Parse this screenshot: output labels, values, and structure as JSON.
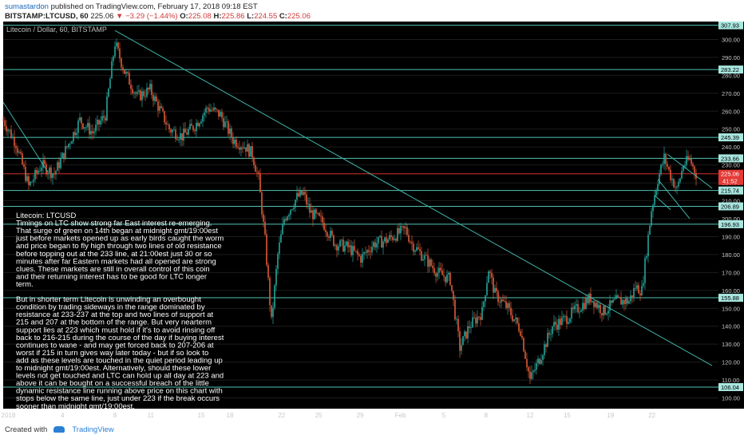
{
  "header": {
    "user": "sumastardon",
    "published": "published on TradingView.com, February 17, 2018 09:18 EST",
    "symbol": "BITSTAMP:LTCUSD, 60",
    "last": "225.06",
    "change": "−3.29 (−1.44%)",
    "open_label": "O:",
    "open": "225.08",
    "high_label": "H:",
    "high": "225.86",
    "low_label": "L:",
    "low": "224.55",
    "close_label": "C:",
    "close": "225.06"
  },
  "footer": {
    "created_with": "Created with",
    "brand": "TradingView"
  },
  "colors": {
    "background": "#000000",
    "level_line": "#4fc3b4",
    "price_line": "#d32f2f",
    "up": "#26a69a",
    "down": "#e05a3a",
    "trend": "#3fb5a8"
  },
  "chart_data": {
    "type": "candlestick",
    "title": "Litecoin / Dollar, 60, BITSTAMP",
    "y_range": [
      94,
      310
    ],
    "y_ticks": [
      100,
      110,
      120,
      130,
      140,
      150,
      160,
      170,
      180,
      190,
      200,
      210,
      220,
      230,
      240,
      250,
      260,
      270,
      280,
      290,
      300
    ],
    "x_ticks": [
      "2018",
      "4",
      "8",
      "11",
      "15",
      "18",
      "22",
      "25",
      "29",
      "Feb",
      "5",
      "8",
      "12",
      "15",
      "19",
      "22"
    ],
    "horizontal_levels": [
      307.93,
      283.22,
      245.39,
      233.66,
      215.74,
      206.89,
      196.93,
      155.88,
      106.04
    ],
    "current_price": 225.06,
    "current_time": "41:52",
    "series_path": [
      [
        0,
        255
      ],
      [
        2,
        242
      ],
      [
        4,
        218
      ],
      [
        6,
        230
      ],
      [
        8,
        225
      ],
      [
        10,
        240
      ],
      [
        12,
        255
      ],
      [
        14,
        248
      ],
      [
        16,
        258
      ],
      [
        17.5,
        298
      ],
      [
        19,
        282
      ],
      [
        21,
        268
      ],
      [
        23,
        272
      ],
      [
        26,
        250
      ],
      [
        28,
        246
      ],
      [
        30,
        252
      ],
      [
        32,
        262
      ],
      [
        34,
        258
      ],
      [
        36,
        244
      ],
      [
        38,
        240
      ],
      [
        39,
        236
      ],
      [
        40,
        222
      ],
      [
        41,
        188
      ],
      [
        42,
        142
      ],
      [
        43,
        180
      ],
      [
        44,
        200
      ],
      [
        46,
        212
      ],
      [
        47,
        214
      ],
      [
        48,
        204
      ],
      [
        50,
        198
      ],
      [
        52,
        186
      ],
      [
        54,
        184
      ],
      [
        56,
        178
      ],
      [
        58,
        186
      ],
      [
        60,
        188
      ],
      [
        62,
        192
      ],
      [
        63,
        194
      ],
      [
        64,
        186
      ],
      [
        66,
        178
      ],
      [
        68,
        170
      ],
      [
        70,
        166
      ],
      [
        71.5,
        128
      ],
      [
        73,
        140
      ],
      [
        75,
        148
      ],
      [
        76,
        172
      ],
      [
        77,
        158
      ],
      [
        79,
        150
      ],
      [
        81,
        138
      ],
      [
        82.5,
        110
      ],
      [
        84,
        122
      ],
      [
        86,
        140
      ],
      [
        88,
        144
      ],
      [
        90,
        150
      ],
      [
        92,
        156
      ],
      [
        94,
        148
      ],
      [
        96,
        154
      ],
      [
        98,
        154
      ],
      [
        99,
        162
      ],
      [
        100,
        160
      ],
      [
        101.5,
        205
      ],
      [
        102.5,
        222
      ],
      [
        103.5,
        234
      ],
      [
        104.5,
        224
      ],
      [
        105.5,
        216
      ],
      [
        106.5,
        230
      ],
      [
        107.5,
        233
      ],
      [
        108.5,
        225
      ]
    ],
    "trendlines": [
      {
        "from": [
          17.5,
          305
        ],
        "to": [
          111,
          118
        ]
      },
      {
        "from": [
          0,
          265
        ],
        "to": [
          7,
          226
        ]
      },
      {
        "from": [
          104,
          236
        ],
        "to": [
          111,
          217
        ]
      },
      {
        "from": [
          102.5,
          222
        ],
        "to": [
          107.5,
          200
        ]
      },
      {
        "from": [
          102,
          213
        ],
        "to": [
          104.5,
          205
        ]
      }
    ],
    "annotation": [
      "Litecoin: LTCUSD",
      "Timings on LTC show strong far East interest re-emerging.",
      "That surge of green on 14th began at midnight gmt/19:00est",
      "just before markets opened up as early birds caught the worm",
      "and price began to fly high through two lines of old resistance",
      "before topping out at the 233 line, at 21:00est just 30 or so",
      "minutes after far Eastern markets had all opened are strong",
      "clues. These markets are still in overall control of this coin",
      "and their returning interest has to be good for LTC longer",
      "term.",
      "",
      "But in shorter term Litecoin is unwinding an overbought",
      "condition by trading sideways in the range dominated by",
      "resistance at 233-237 at the top and two lines of support at",
      "215 and 207 at the bottom of the range. But very nearterm",
      "support lies at 223 which must hold if it's to avoid rinsing off",
      "back to 216-215 during the course of the day if buying interest",
      "continues to wane - and may get forced back to 207-206 at",
      "worst if 215 in turn gives way later today - but if so look to",
      "add as these levels are touched in the quiet period leading up",
      "to midnight gmt/19:00est. Alternatively, should these lower",
      "levels not get touched and LTC can hold up all day at 223 and",
      "above it can be bought on a successful breach of the little",
      "dynamic resistance line running above price on this chart with",
      "stops below the same line, just under 223 if the break occurs",
      "sooner than midnight gmt/19:00est."
    ]
  }
}
